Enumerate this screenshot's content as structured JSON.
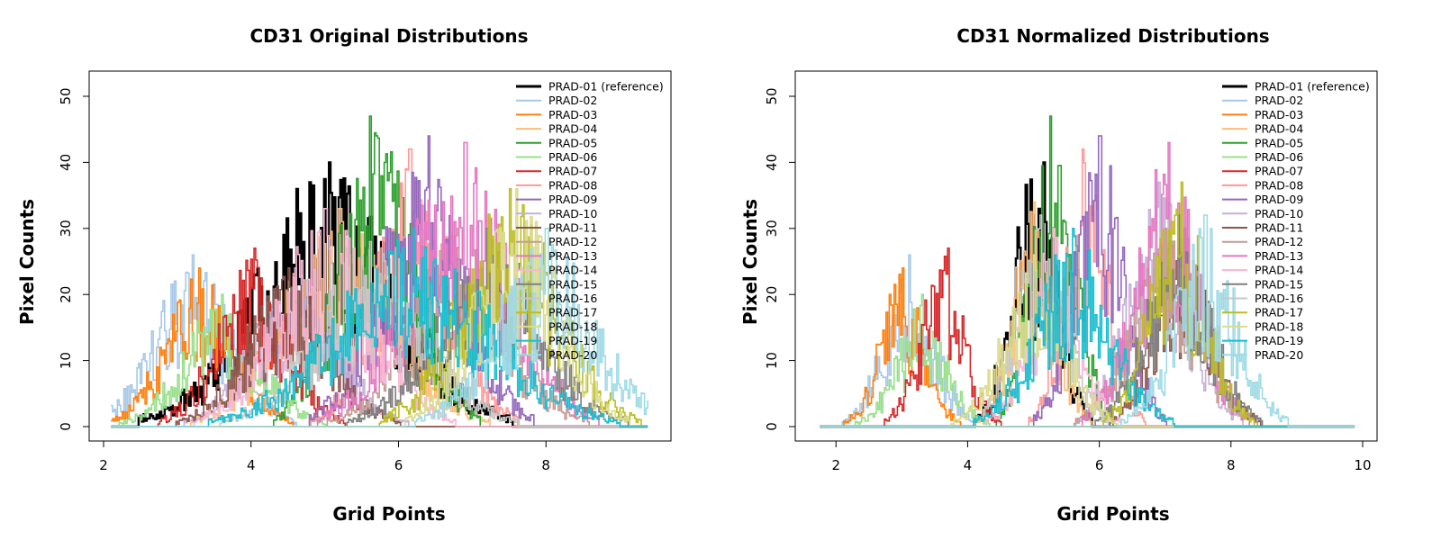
{
  "chart_data": [
    {
      "type": "line",
      "title": "CD31 Original Distributions",
      "xlabel": "Grid Points",
      "ylabel": "Pixel Counts",
      "xlim": [
        2.0,
        9.5
      ],
      "ylim": [
        0,
        52
      ],
      "xticks": [
        2,
        4,
        6,
        8
      ],
      "yticks": [
        0,
        10,
        20,
        30,
        40,
        50
      ],
      "legend_position": "top-right",
      "series": [
        {
          "name": "PRAD-01 (reference)",
          "color": "#000000",
          "center": 5.0,
          "spread": 1.0,
          "peak_x": 5.05,
          "peak_y": 40,
          "x_start": 2.1
        },
        {
          "name": "PRAD-02",
          "color": "#A6C8E8",
          "center": 3.2,
          "spread": 0.55,
          "peak_x": 3.2,
          "peak_y": 26,
          "x_start": 2.1
        },
        {
          "name": "PRAD-03",
          "color": "#FF7F0E",
          "center": 3.3,
          "spread": 0.5,
          "peak_x": 3.3,
          "peak_y": 24,
          "x_start": 2.1
        },
        {
          "name": "PRAD-04",
          "color": "#FFBB78",
          "center": 5.2,
          "spread": 0.8,
          "peak_x": 5.2,
          "peak_y": 33,
          "x_start": 2.1
        },
        {
          "name": "PRAD-05",
          "color": "#2CA02C",
          "center": 5.7,
          "spread": 0.55,
          "peak_x": 5.6,
          "peak_y": 47,
          "x_start": 2.1
        },
        {
          "name": "PRAD-06",
          "color": "#98DF8A",
          "center": 3.6,
          "spread": 0.55,
          "peak_x": 3.6,
          "peak_y": 20,
          "x_start": 2.1
        },
        {
          "name": "PRAD-07",
          "color": "#D62728",
          "center": 4.0,
          "spread": 0.5,
          "peak_x": 4.05,
          "peak_y": 27,
          "x_start": 2.1
        },
        {
          "name": "PRAD-08",
          "color": "#FF9896",
          "center": 6.2,
          "spread": 0.55,
          "peak_x": 6.15,
          "peak_y": 42,
          "x_start": 2.1
        },
        {
          "name": "PRAD-09",
          "color": "#9467BD",
          "center": 6.3,
          "spread": 0.6,
          "peak_x": 6.4,
          "peak_y": 44,
          "x_start": 2.1
        },
        {
          "name": "PRAD-10",
          "color": "#C5B0D5",
          "center": 4.6,
          "spread": 0.6,
          "peak_x": 4.6,
          "peak_y": 24,
          "x_start": 2.1
        },
        {
          "name": "PRAD-11",
          "color": "#8C564B",
          "center": 4.5,
          "spread": 0.6,
          "peak_x": 4.5,
          "peak_y": 24,
          "x_start": 2.1
        },
        {
          "name": "PRAD-12",
          "color": "#C49C94",
          "center": 6.8,
          "spread": 0.7,
          "peak_x": 6.8,
          "peak_y": 30,
          "x_start": 2.1
        },
        {
          "name": "PRAD-13",
          "color": "#E377C2",
          "center": 6.8,
          "spread": 0.75,
          "peak_x": 6.9,
          "peak_y": 43,
          "x_start": 2.1
        },
        {
          "name": "PRAD-14",
          "color": "#F7B6D2",
          "center": 5.0,
          "spread": 0.7,
          "peak_x": 5.0,
          "peak_y": 33,
          "x_start": 2.1
        },
        {
          "name": "PRAD-15",
          "color": "#7F7F7F",
          "center": 7.2,
          "spread": 0.75,
          "peak_x": 7.2,
          "peak_y": 30,
          "x_start": 2.1
        },
        {
          "name": "PRAD-16",
          "color": "#C7C7C7",
          "center": 5.6,
          "spread": 0.8,
          "peak_x": 5.6,
          "peak_y": 28,
          "x_start": 2.1
        },
        {
          "name": "PRAD-17",
          "color": "#BCBD22",
          "center": 7.5,
          "spread": 0.7,
          "peak_x": 7.5,
          "peak_y": 36,
          "x_start": 2.1
        },
        {
          "name": "PRAD-18",
          "color": "#DBDB8D",
          "center": 7.6,
          "spread": 0.6,
          "peak_x": 7.6,
          "peak_y": 36,
          "x_start": 2.1
        },
        {
          "name": "PRAD-19",
          "color": "#17BECF",
          "center": 6.2,
          "spread": 1.1,
          "peak_x": 6.2,
          "peak_y": 30,
          "x_start": 2.1
        },
        {
          "name": "PRAD-20",
          "color": "#9EDAE5",
          "center": 8.0,
          "spread": 0.7,
          "peak_x": 8.0,
          "peak_y": 30,
          "x_start": 2.1
        }
      ]
    },
    {
      "type": "line",
      "title": "CD31 Normalized Distributions",
      "xlabel": "Grid Points",
      "ylabel": "Pixel Counts",
      "xlim": [
        1.6,
        10.0
      ],
      "ylim": [
        0,
        52
      ],
      "xticks": [
        2,
        4,
        6,
        8,
        10
      ],
      "yticks": [
        0,
        10,
        20,
        30,
        40,
        50
      ],
      "legend_position": "top-right",
      "series": [
        {
          "name": "PRAD-01 (reference)",
          "color": "#000000",
          "center": 5.0,
          "spread": 0.35,
          "peak_x": 5.15,
          "peak_y": 40,
          "x_start": 1.75
        },
        {
          "name": "PRAD-02",
          "color": "#A6C8E8",
          "center": 3.1,
          "spread": 0.4,
          "peak_x": 3.1,
          "peak_y": 26,
          "x_start": 1.75
        },
        {
          "name": "PRAD-03",
          "color": "#FF7F0E",
          "center": 3.0,
          "spread": 0.35,
          "peak_x": 3.0,
          "peak_y": 24,
          "x_start": 1.75
        },
        {
          "name": "PRAD-04",
          "color": "#FFBB78",
          "center": 5.0,
          "spread": 0.35,
          "peak_x": 5.0,
          "peak_y": 34,
          "x_start": 1.75
        },
        {
          "name": "PRAD-05",
          "color": "#2CA02C",
          "center": 5.3,
          "spread": 0.35,
          "peak_x": 5.25,
          "peak_y": 47,
          "x_start": 1.75
        },
        {
          "name": "PRAD-06",
          "color": "#98DF8A",
          "center": 3.3,
          "spread": 0.4,
          "peak_x": 3.3,
          "peak_y": 20,
          "x_start": 1.75
        },
        {
          "name": "PRAD-07",
          "color": "#D62728",
          "center": 3.6,
          "spread": 0.35,
          "peak_x": 3.7,
          "peak_y": 27,
          "x_start": 1.75
        },
        {
          "name": "PRAD-08",
          "color": "#FF9896",
          "center": 5.8,
          "spread": 0.35,
          "peak_x": 5.75,
          "peak_y": 42,
          "x_start": 1.75
        },
        {
          "name": "PRAD-09",
          "color": "#9467BD",
          "center": 6.0,
          "spread": 0.4,
          "peak_x": 6.0,
          "peak_y": 44,
          "x_start": 1.75
        },
        {
          "name": "PRAD-10",
          "color": "#C5B0D5",
          "center": 6.9,
          "spread": 0.5,
          "peak_x": 6.9,
          "peak_y": 37,
          "x_start": 1.75
        },
        {
          "name": "PRAD-11",
          "color": "#8C564B",
          "center": 7.3,
          "spread": 0.45,
          "peak_x": 7.3,
          "peak_y": 30,
          "x_start": 1.75
        },
        {
          "name": "PRAD-12",
          "color": "#C49C94",
          "center": 7.0,
          "spread": 0.55,
          "peak_x": 7.0,
          "peak_y": 30,
          "x_start": 1.75
        },
        {
          "name": "PRAD-13",
          "color": "#E377C2",
          "center": 7.0,
          "spread": 0.5,
          "peak_x": 7.05,
          "peak_y": 43,
          "x_start": 1.75
        },
        {
          "name": "PRAD-14",
          "color": "#F7B6D2",
          "center": 5.3,
          "spread": 0.4,
          "peak_x": 5.3,
          "peak_y": 30,
          "x_start": 1.75
        },
        {
          "name": "PRAD-15",
          "color": "#7F7F7F",
          "center": 7.2,
          "spread": 0.5,
          "peak_x": 7.2,
          "peak_y": 32,
          "x_start": 1.75
        },
        {
          "name": "PRAD-16",
          "color": "#C7C7C7",
          "center": 5.1,
          "spread": 0.4,
          "peak_x": 5.1,
          "peak_y": 32,
          "x_start": 1.75
        },
        {
          "name": "PRAD-17",
          "color": "#BCBD22",
          "center": 7.2,
          "spread": 0.45,
          "peak_x": 7.25,
          "peak_y": 37,
          "x_start": 1.75
        },
        {
          "name": "PRAD-18",
          "color": "#DBDB8D",
          "center": 5.0,
          "spread": 0.5,
          "peak_x": 5.0,
          "peak_y": 26,
          "x_start": 1.75
        },
        {
          "name": "PRAD-19",
          "color": "#17BECF",
          "center": 5.6,
          "spread": 0.6,
          "peak_x": 5.6,
          "peak_y": 30,
          "x_start": 1.75
        },
        {
          "name": "PRAD-20",
          "color": "#9EDAE5",
          "center": 7.6,
          "spread": 0.5,
          "peak_x": 7.6,
          "peak_y": 32,
          "x_start": 1.75
        }
      ]
    }
  ]
}
